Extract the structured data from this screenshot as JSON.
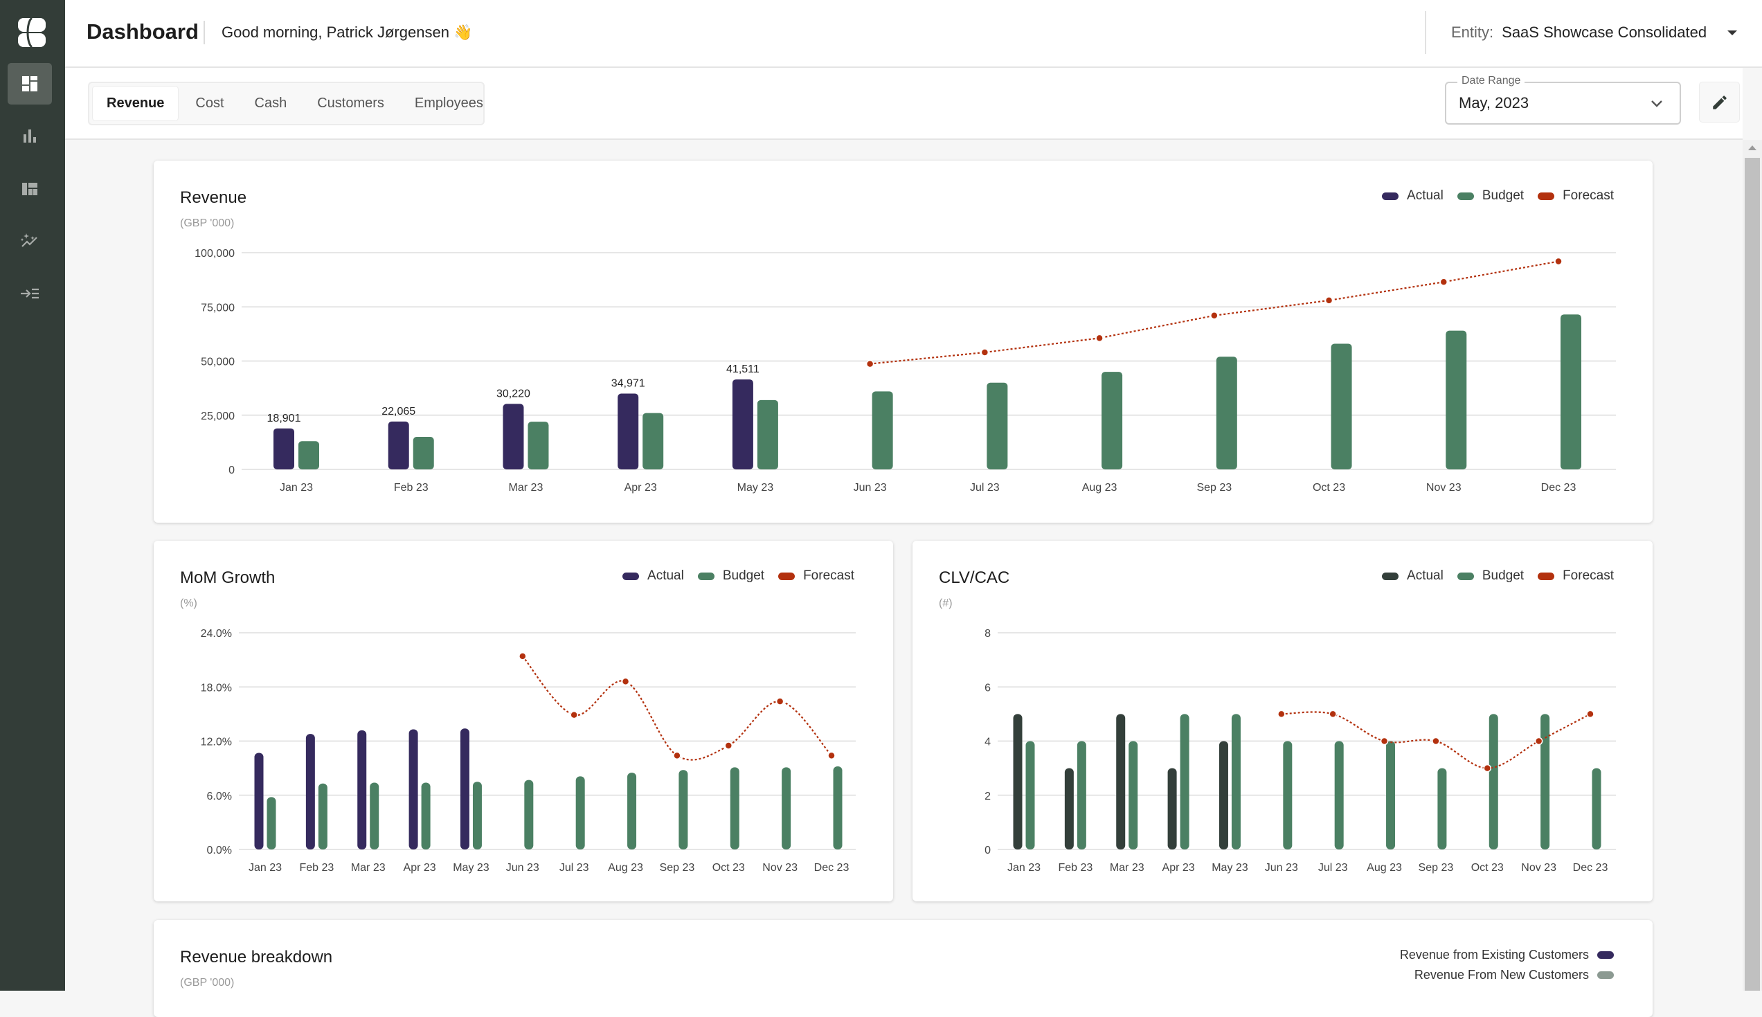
{
  "header": {
    "title": "Dashboard",
    "greeting": "Good morning, Patrick Jørgensen 👋",
    "entity_label": "Entity:",
    "entity_value": "SaaS Showcase Consolidated"
  },
  "sidebar": {
    "items": [
      {
        "icon": "dashboard-icon",
        "active": true
      },
      {
        "icon": "bar-chart-icon"
      },
      {
        "icon": "layout-icon"
      },
      {
        "icon": "insights-icon"
      },
      {
        "icon": "expand-menu-icon"
      }
    ]
  },
  "tabs": [
    {
      "label": "Revenue",
      "active": true
    },
    {
      "label": "Cost"
    },
    {
      "label": "Cash"
    },
    {
      "label": "Customers"
    },
    {
      "label": "Employees"
    }
  ],
  "date_range": {
    "label": "Date Range",
    "value": "May, 2023"
  },
  "colors": {
    "actual": "#352a5e",
    "budget": "#4b8063",
    "forecast": "#b3310e",
    "actual_dark": "#333f3a",
    "existing": "#352a5e",
    "new": "#8c9a92"
  },
  "breakdown": {
    "title": "Revenue breakdown",
    "unit": "(GBP '000)",
    "legend": [
      "Revenue from Existing Customers",
      "Revenue From New Customers"
    ]
  },
  "chart_data": [
    {
      "id": "revenue",
      "type": "bar",
      "title": "Revenue",
      "unit": "(GBP '000)",
      "legend": [
        "Actual",
        "Budget",
        "Forecast"
      ],
      "categories": [
        "Jan 23",
        "Feb 23",
        "Mar 23",
        "Apr 23",
        "May 23",
        "Jun 23",
        "Jul 23",
        "Aug 23",
        "Sep 23",
        "Oct 23",
        "Nov 23",
        "Dec 23"
      ],
      "yticks": [
        "0",
        "25,000",
        "50,000",
        "75,000",
        "100,000"
      ],
      "ylim": [
        0,
        100000
      ],
      "series": [
        {
          "name": "Actual",
          "values": [
            18901,
            22065,
            30220,
            34971,
            41511,
            null,
            null,
            null,
            null,
            null,
            null,
            null
          ],
          "labels": [
            "18,901",
            "22,065",
            "30,220",
            "34,971",
            "41,511"
          ]
        },
        {
          "name": "Budget",
          "values": [
            13000,
            15000,
            22000,
            26000,
            32000,
            36000,
            40000,
            45000,
            52000,
            58000,
            64000,
            71500
          ]
        },
        {
          "name": "Forecast",
          "values": [
            null,
            null,
            null,
            null,
            null,
            48700,
            54000,
            60600,
            71000,
            78000,
            86500,
            96000
          ]
        }
      ]
    },
    {
      "id": "mom",
      "type": "bar",
      "title": "MoM Growth",
      "unit": "(%)",
      "legend": [
        "Actual",
        "Budget",
        "Forecast"
      ],
      "categories": [
        "Jan 23",
        "Feb 23",
        "Mar 23",
        "Apr 23",
        "May 23",
        "Jun 23",
        "Jul 23",
        "Aug 23",
        "Sep 23",
        "Oct 23",
        "Nov 23",
        "Dec 23"
      ],
      "yticks": [
        "0.0%",
        "6.0%",
        "12.0%",
        "18.0%",
        "24.0%"
      ],
      "ylim": [
        0,
        24
      ],
      "series": [
        {
          "name": "Actual",
          "values": [
            10.7,
            12.8,
            13.2,
            13.3,
            13.4,
            null,
            null,
            null,
            null,
            null,
            null,
            null
          ]
        },
        {
          "name": "Budget",
          "values": [
            5.8,
            7.3,
            7.4,
            7.4,
            7.5,
            7.7,
            8.1,
            8.5,
            8.8,
            9.1,
            9.1,
            9.2
          ]
        },
        {
          "name": "Forecast",
          "values": [
            null,
            null,
            null,
            null,
            null,
            21.4,
            14.9,
            18.6,
            10.4,
            11.5,
            16.4,
            10.4
          ]
        }
      ]
    },
    {
      "id": "clvcac",
      "type": "bar",
      "title": "CLV/CAC",
      "unit": "(#)",
      "legend": [
        "Actual",
        "Budget",
        "Forecast"
      ],
      "categories": [
        "Jan 23",
        "Feb 23",
        "Mar 23",
        "Apr 23",
        "May 23",
        "Jun 23",
        "Jul 23",
        "Aug 23",
        "Sep 23",
        "Oct 23",
        "Nov 23",
        "Dec 23"
      ],
      "yticks": [
        "0",
        "2",
        "4",
        "6",
        "8"
      ],
      "ylim": [
        0,
        8
      ],
      "series": [
        {
          "name": "Actual",
          "values": [
            5,
            3,
            5,
            3,
            4,
            null,
            null,
            null,
            null,
            null,
            null,
            null
          ]
        },
        {
          "name": "Budget",
          "values": [
            4,
            4,
            4,
            5,
            5,
            4,
            4,
            4,
            3,
            5,
            5,
            3
          ]
        },
        {
          "name": "Forecast",
          "values": [
            null,
            null,
            null,
            null,
            null,
            5,
            5,
            4,
            4,
            3,
            4,
            5
          ]
        }
      ]
    }
  ]
}
